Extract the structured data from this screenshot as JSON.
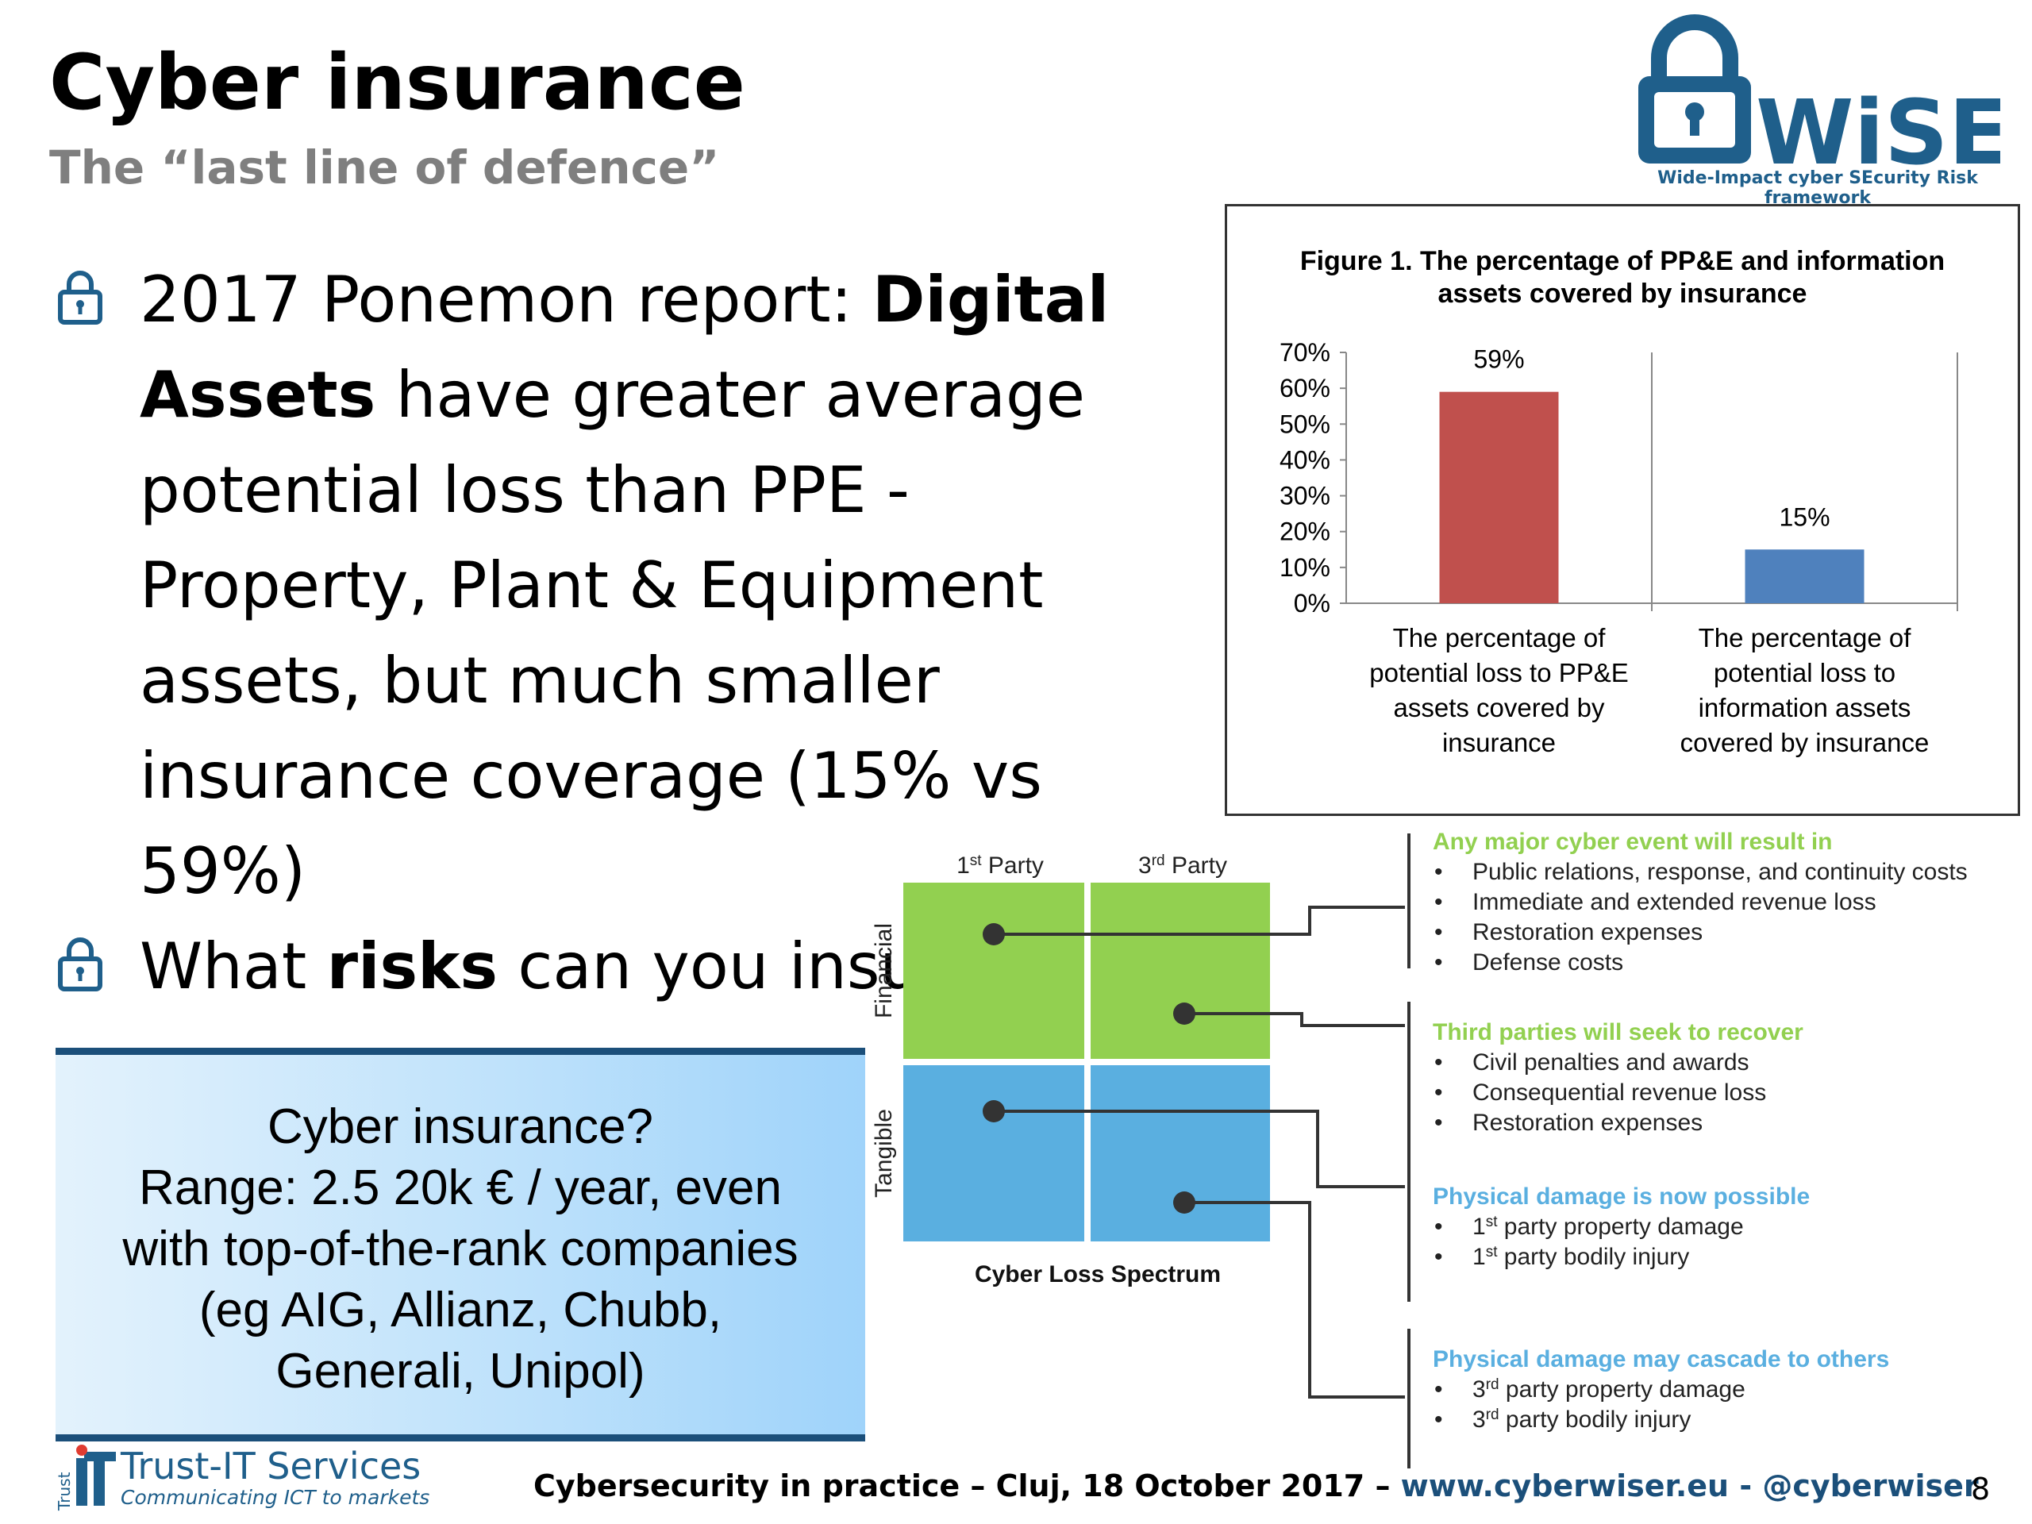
{
  "slide": {
    "title": "Cyber insurance",
    "subtitle": "The “last line of defence”",
    "page_number": "8"
  },
  "logo": {
    "wordmark": "WiSER",
    "tagline": "Wide-Impact cyber SEcurity Risk framework",
    "icon": "padlock-icon"
  },
  "bullets": [
    {
      "icon": "padlock-icon",
      "parts": [
        "2017 Ponemon report: ",
        "Digital Assets",
        " have greater average potential loss than PPE - Property, Plant & Equipment assets, but much smaller insurance coverage (15% vs 59%)"
      ]
    },
    {
      "icon": "padlock-icon",
      "parts": [
        "What ",
        "risks",
        " can you insure?"
      ]
    }
  ],
  "callout": {
    "lines": [
      "Cyber insurance?",
      "Range: 2.5 20k € / year, even",
      "with top-of-the-rank companies",
      "(eg AIG, Allianz, Chubb,",
      "Generali, Unipol)"
    ]
  },
  "chart_data": {
    "type": "bar",
    "title": "Figure 1. The percentage of PP&E and information assets covered by insurance",
    "title_lines": [
      "Figure 1. The percentage of PP&E and information",
      "assets covered by insurance"
    ],
    "categories": [
      "The percentage of potential loss to PP&E assets covered by insurance",
      "The percentage of potential loss to information assets covered by insurance"
    ],
    "category_lines": [
      [
        "The percentage of",
        "potential loss to PP&E",
        "assets covered by",
        "insurance"
      ],
      [
        "The percentage of",
        "potential loss to",
        "information assets",
        "covered by insurance"
      ]
    ],
    "values": [
      59,
      15
    ],
    "data_labels": [
      "59%",
      "15%"
    ],
    "colors": [
      "#c0504d",
      "#4f81bd"
    ],
    "ylim": [
      0,
      70
    ],
    "yticks": [
      0,
      10,
      20,
      30,
      40,
      50,
      60,
      70
    ],
    "ytick_labels": [
      "0%",
      "10%",
      "20%",
      "30%",
      "40%",
      "50%",
      "60%",
      "70%"
    ],
    "xlabel": "",
    "ylabel": "",
    "grid": false
  },
  "spectrum": {
    "columns": [
      {
        "num": "1",
        "sup": "st",
        "text": " Party"
      },
      {
        "num": "3",
        "sup": "rd",
        "text": " Party"
      }
    ],
    "rows": [
      "Financial",
      "Tangible"
    ],
    "caption": "Cyber Loss Spectrum",
    "colors": {
      "financial": "#92d050",
      "tangible": "#5aafe0",
      "heading": "#92d050",
      "heading_blue": "#5aafe0"
    },
    "groups": [
      {
        "heading": "Any major cyber event will result in",
        "items": [
          {
            "text": "Public relations, response, and continuity costs"
          },
          {
            "text": "Immediate and extended revenue loss"
          },
          {
            "text": "Restoration expenses"
          },
          {
            "text": "Defense costs"
          }
        ]
      },
      {
        "heading": "Third parties will seek to recover",
        "items": [
          {
            "text": "Civil penalties and awards"
          },
          {
            "text": "Consequential revenue loss"
          },
          {
            "text": "Restoration expenses"
          }
        ]
      },
      {
        "heading": "Physical damage is now possible",
        "items": [
          {
            "num": "1",
            "sup": "st",
            "text": " party property damage"
          },
          {
            "num": "1",
            "sup": "st",
            "text": " party bodily injury"
          }
        ]
      },
      {
        "heading": "Physical damage may cascade to others",
        "items": [
          {
            "num": "3",
            "sup": "rd",
            "text": " party property damage"
          },
          {
            "num": "3",
            "sup": "rd",
            "text": " party bodily injury"
          }
        ]
      }
    ]
  },
  "footer": {
    "company": "Trust-IT Services",
    "company_tagline": "Communicating ICT to markets",
    "company_mark": "Trust",
    "event": "Cybersecurity in practice – Cluj, 18 October 2017 – ",
    "website": "www.cyberwiser.eu",
    "separator": " - ",
    "handle": "@cyberwiser"
  }
}
